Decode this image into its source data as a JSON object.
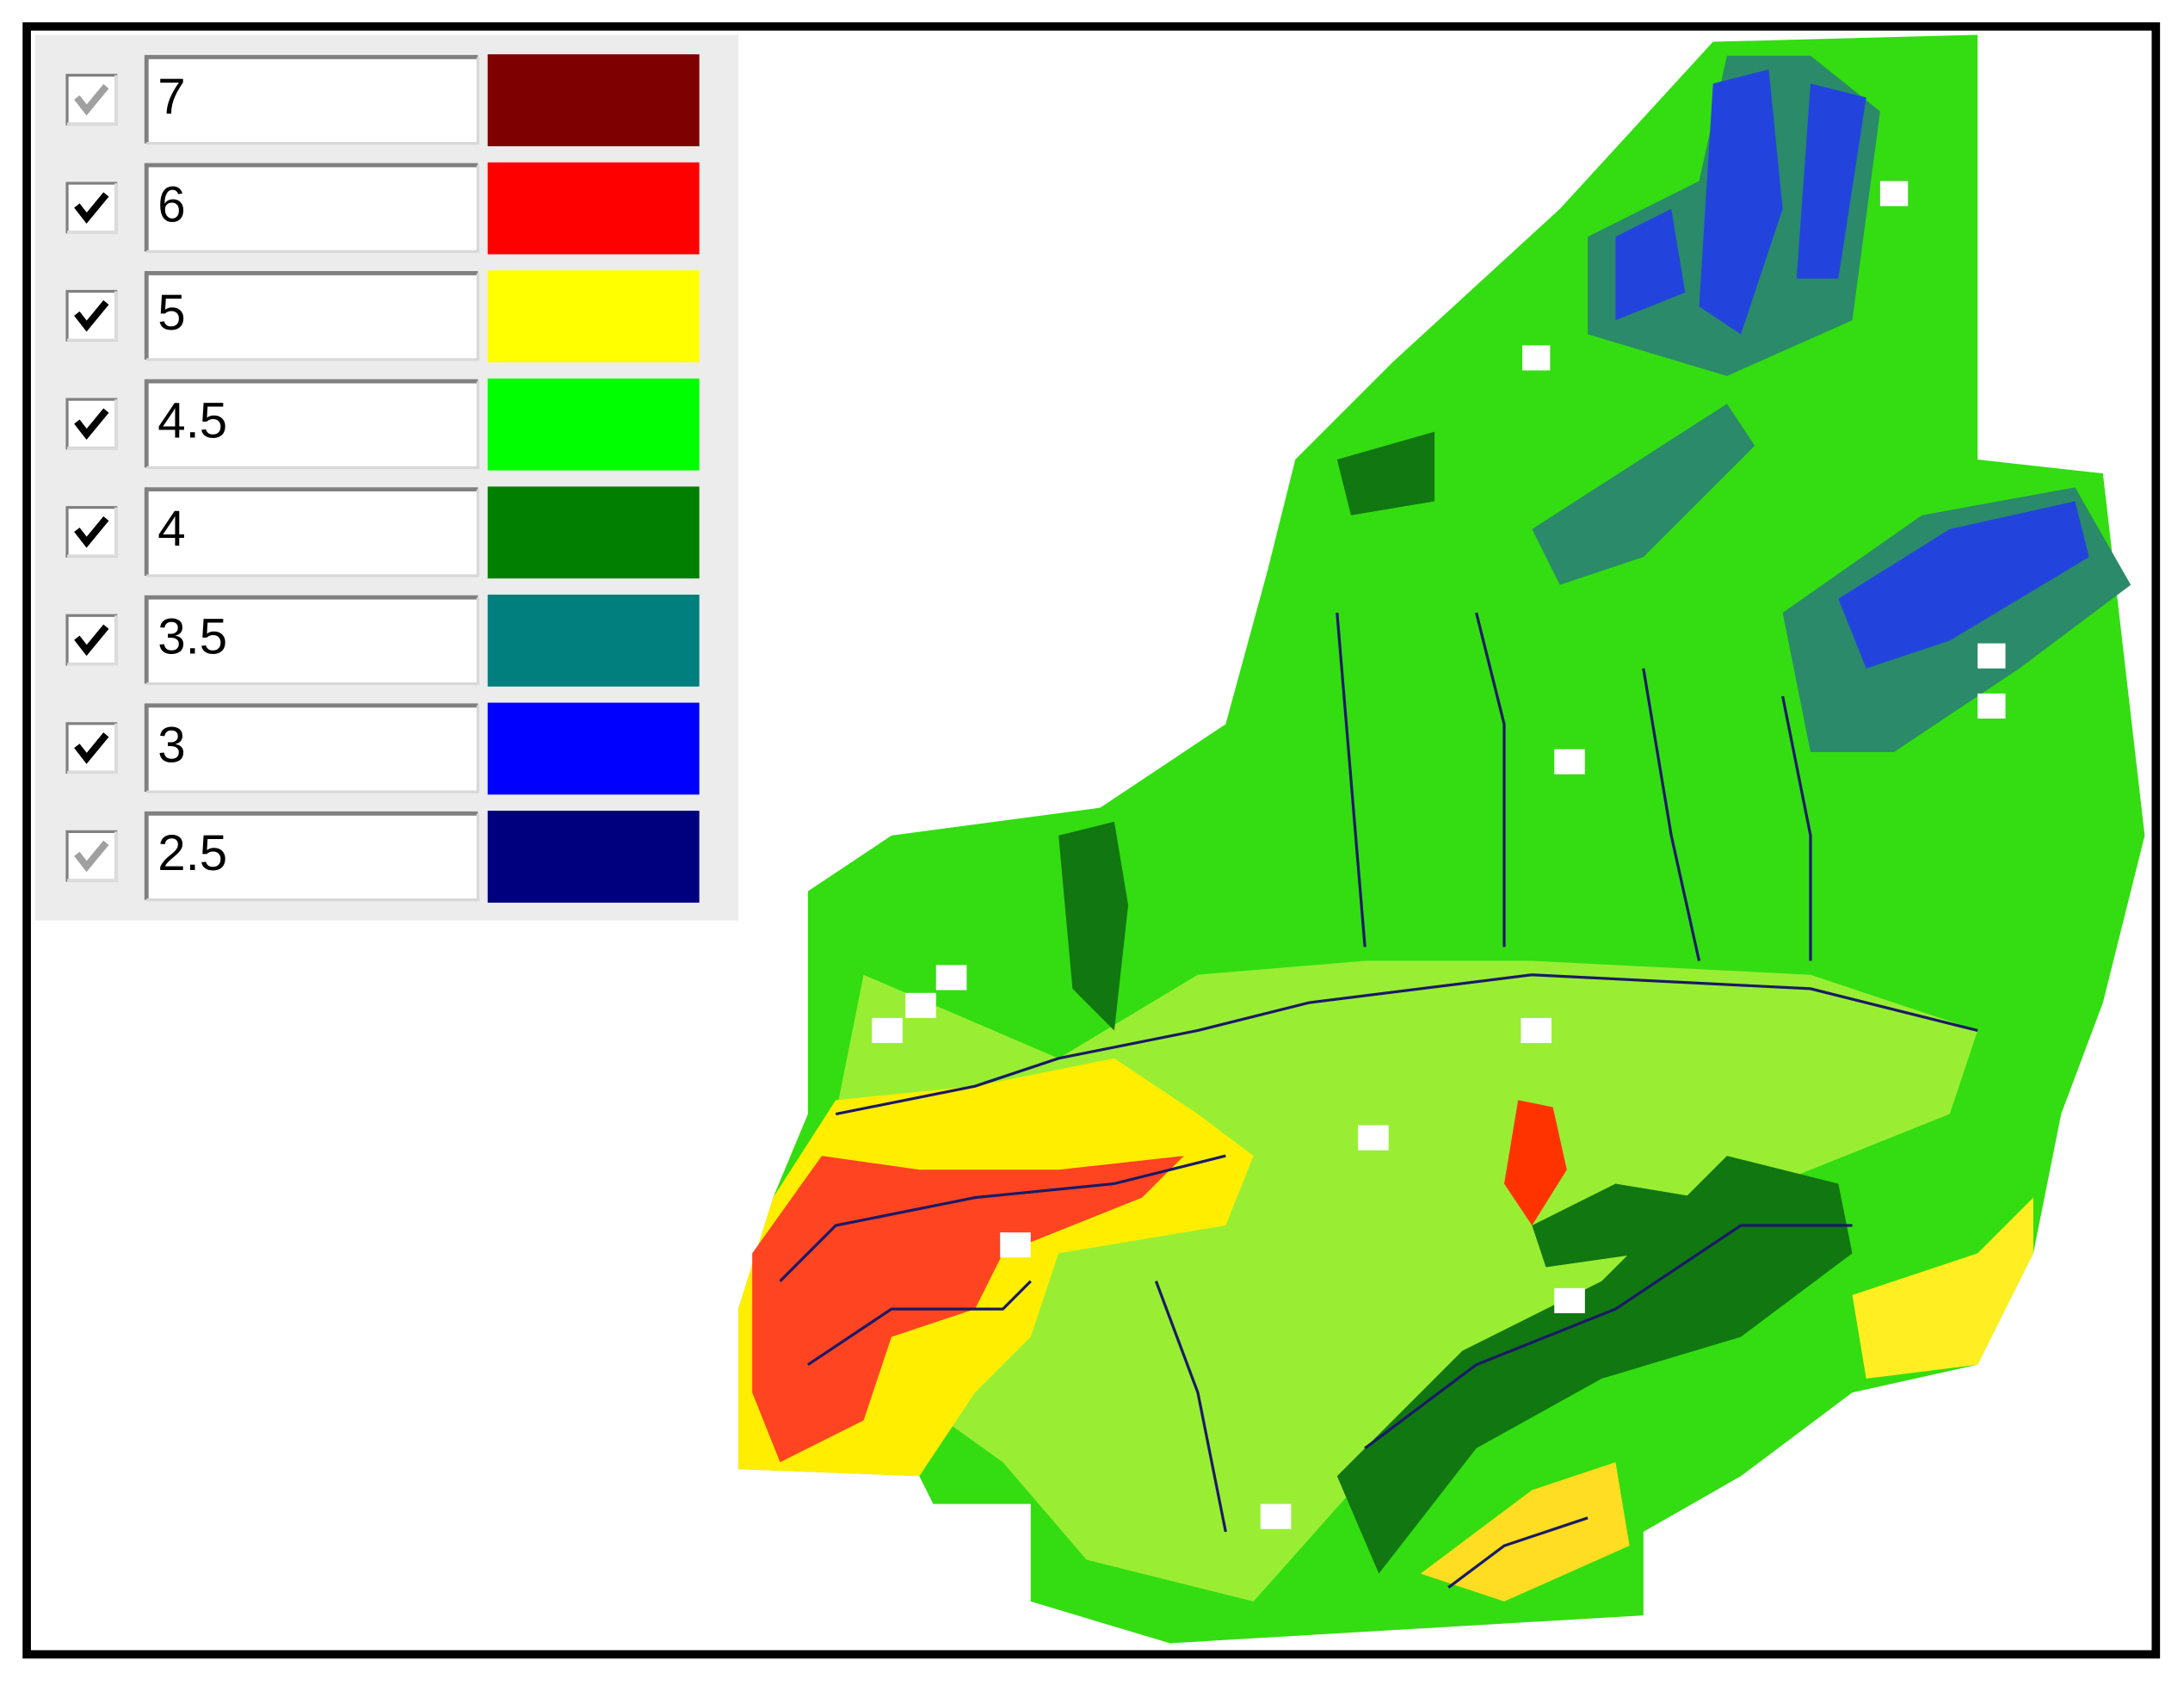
{
  "legend": {
    "rows": [
      {
        "value": 7,
        "color": "#7f0000",
        "checked": true,
        "enabled": false
      },
      {
        "value": 6,
        "color": "#ff0000",
        "checked": true,
        "enabled": true
      },
      {
        "value": 5,
        "color": "#ffff00",
        "checked": true,
        "enabled": true
      },
      {
        "value": 4.5,
        "color": "#00ff00",
        "checked": true,
        "enabled": true
      },
      {
        "value": 4,
        "color": "#007f00",
        "checked": true,
        "enabled": true
      },
      {
        "value": 3.5,
        "color": "#007f7f",
        "checked": true,
        "enabled": true
      },
      {
        "value": 3,
        "color": "#0000ff",
        "checked": true,
        "enabled": true
      },
      {
        "value": 2.5,
        "color": "#00007f",
        "checked": true,
        "enabled": false
      }
    ]
  }
}
